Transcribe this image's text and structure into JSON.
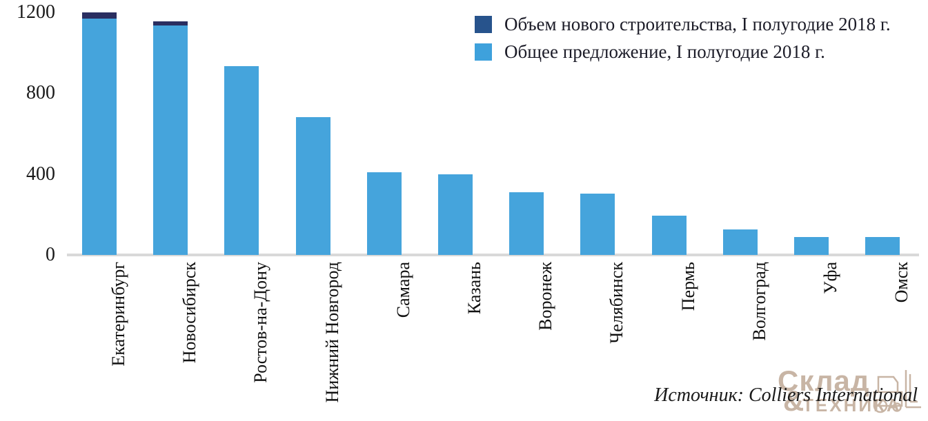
{
  "chart_data": {
    "type": "bar",
    "stacked": true,
    "categories": [
      "Екатеринбург",
      "Новосибирск",
      "Ростов-на-Дону",
      "Нижний Новгород",
      "Самара",
      "Казань",
      "Воронеж",
      "Челябинск",
      "Пермь",
      "Волгоград",
      "Уфа",
      "Омск"
    ],
    "series": [
      {
        "name": "Объем нового строительства, I полугодие 2018 г.",
        "color": "#2a2e60",
        "legend_color": "#27538c",
        "values": [
          30,
          20,
          0,
          0,
          0,
          0,
          0,
          0,
          0,
          0,
          0,
          0
        ]
      },
      {
        "name": "Общее предложение, I полугодие 2018 г.",
        "color": "#45a4dc",
        "legend_color": "#3ea1dc",
        "values": [
          1170,
          1135,
          935,
          680,
          410,
          400,
          310,
          305,
          195,
          125,
          90,
          90
        ]
      }
    ],
    "title": "",
    "xlabel": "",
    "ylabel": "",
    "yticks": [
      0,
      400,
      800,
      1200
    ],
    "ylim": [
      0,
      1261
    ],
    "grid": false,
    "legend_position": "top-right",
    "axis_line_color": "#d9d9d9",
    "text_color": "#1a1a1a"
  },
  "source": {
    "text": "Источник: Colliers International"
  },
  "watermark": {
    "word1": "Склад",
    "amp": "&",
    "word2": "ТЕХНИКА",
    "color": "#c8b5a5"
  }
}
